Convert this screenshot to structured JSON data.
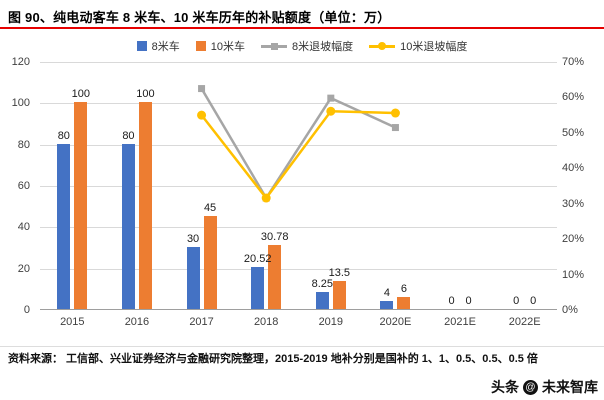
{
  "title": "图 90、纯电动客车 8 米车、10 米车历年的补贴额度（单位：万）",
  "chart_data": {
    "type": "bar+line",
    "categories": [
      "2015",
      "2016",
      "2017",
      "2018",
      "2019",
      "2020E",
      "2021E",
      "2022E"
    ],
    "bar_series": [
      {
        "name": "8米车",
        "color": "#4472C4",
        "values": [
          80,
          80,
          30,
          20.52,
          8.25,
          4,
          0,
          0
        ],
        "labels": [
          "80",
          "80",
          "30",
          "20.52",
          "8.25",
          "4",
          "0",
          "0"
        ]
      },
      {
        "name": "10米车",
        "color": "#ED7D31",
        "values": [
          100,
          100,
          45,
          30.78,
          13.5,
          6,
          0,
          0
        ],
        "labels": [
          "100",
          "100",
          "45",
          "30.78",
          "13.5",
          "6",
          "0",
          "0"
        ]
      }
    ],
    "line_series": [
      {
        "name": "8米退坡幅度",
        "color": "#A6A6A6",
        "marker": "square",
        "points": [
          {
            "x": "2017",
            "y": 62.5
          },
          {
            "x": "2018",
            "y": 31.6
          },
          {
            "x": "2019",
            "y": 59.8
          },
          {
            "x": "2020E",
            "y": 51.5
          }
        ]
      },
      {
        "name": "10米退坡幅度",
        "color": "#FFC000",
        "marker": "circle",
        "points": [
          {
            "x": "2017",
            "y": 55.0
          },
          {
            "x": "2018",
            "y": 31.6
          },
          {
            "x": "2019",
            "y": 56.1
          },
          {
            "x": "2020E",
            "y": 55.6
          }
        ]
      }
    ],
    "left_axis": {
      "min": 0,
      "max": 120,
      "step": 20,
      "ticks": [
        "0",
        "20",
        "40",
        "60",
        "80",
        "100",
        "120"
      ]
    },
    "right_axis": {
      "min": 0,
      "max": 70,
      "step": 10,
      "ticks": [
        "0%",
        "10%",
        "20%",
        "30%",
        "40%",
        "50%",
        "60%",
        "70%"
      ]
    },
    "grid": true,
    "legend_position": "top"
  },
  "accent": {
    "title_rule_color": "#E60000"
  },
  "footer": {
    "source": "资料来源： 工信部、兴业证券经济与金融研究院整理，2015-2019 地补分别是国补的 1、1、0.5、0.5、0.5 倍"
  },
  "watermark": {
    "brand": "头条",
    "logo_glyph": "@",
    "name": "未来智库"
  }
}
